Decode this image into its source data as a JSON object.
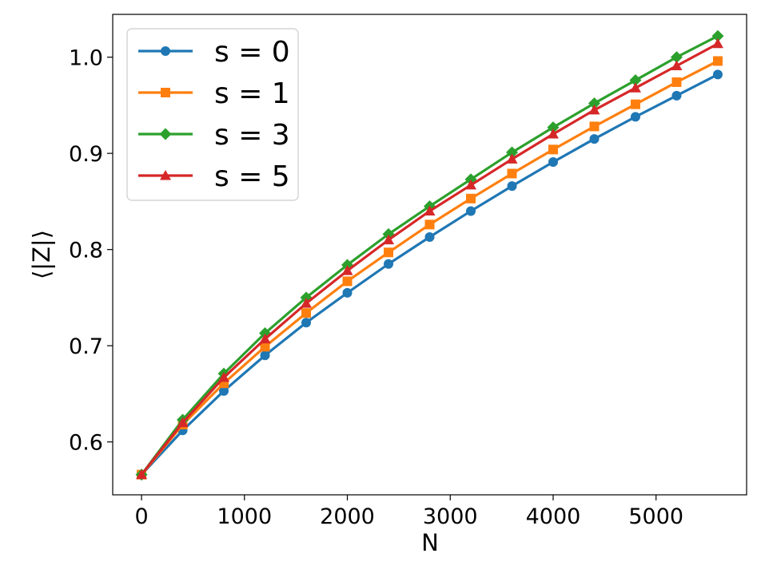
{
  "chart_data": {
    "type": "line",
    "xlabel": "N",
    "ylabel": "⟨|Z|⟩",
    "xlim": [
      -280,
      5880
    ],
    "ylim": [
      0.545,
      1.0445
    ],
    "xticks": [
      0,
      1000,
      2000,
      3000,
      4000,
      5000
    ],
    "yticks": [
      0.6,
      0.7,
      0.8,
      0.9,
      1.0
    ],
    "ytick_labels": [
      "0.6",
      "0.7",
      "0.8",
      "0.9",
      "1.0"
    ],
    "grid": false,
    "legend_position": "top-left",
    "x": [
      0,
      400,
      800,
      1200,
      1600,
      2000,
      2400,
      2800,
      3200,
      3600,
      4000,
      4400,
      4800,
      5200,
      5600
    ],
    "series": [
      {
        "name": "s = 0",
        "color": "#1f77b4",
        "marker": "circle",
        "values": [
          0.566,
          0.612,
          0.653,
          0.69,
          0.724,
          0.755,
          0.785,
          0.813,
          0.84,
          0.866,
          0.891,
          0.915,
          0.938,
          0.96,
          0.982
        ]
      },
      {
        "name": "s = 1",
        "color": "#ff7f0e",
        "marker": "square",
        "values": [
          0.566,
          0.618,
          0.661,
          0.699,
          0.734,
          0.767,
          0.797,
          0.826,
          0.853,
          0.879,
          0.904,
          0.928,
          0.951,
          0.974,
          0.996
        ]
      },
      {
        "name": "s = 3",
        "color": "#2ca02c",
        "marker": "diamond",
        "values": [
          0.566,
          0.623,
          0.671,
          0.713,
          0.75,
          0.784,
          0.816,
          0.845,
          0.873,
          0.901,
          0.927,
          0.952,
          0.976,
          1.0,
          1.022
        ]
      },
      {
        "name": "s = 5",
        "color": "#d62728",
        "marker": "triangle",
        "values": [
          0.566,
          0.62,
          0.667,
          0.707,
          0.744,
          0.778,
          0.81,
          0.84,
          0.867,
          0.894,
          0.92,
          0.945,
          0.968,
          0.991,
          1.014
        ]
      }
    ]
  }
}
